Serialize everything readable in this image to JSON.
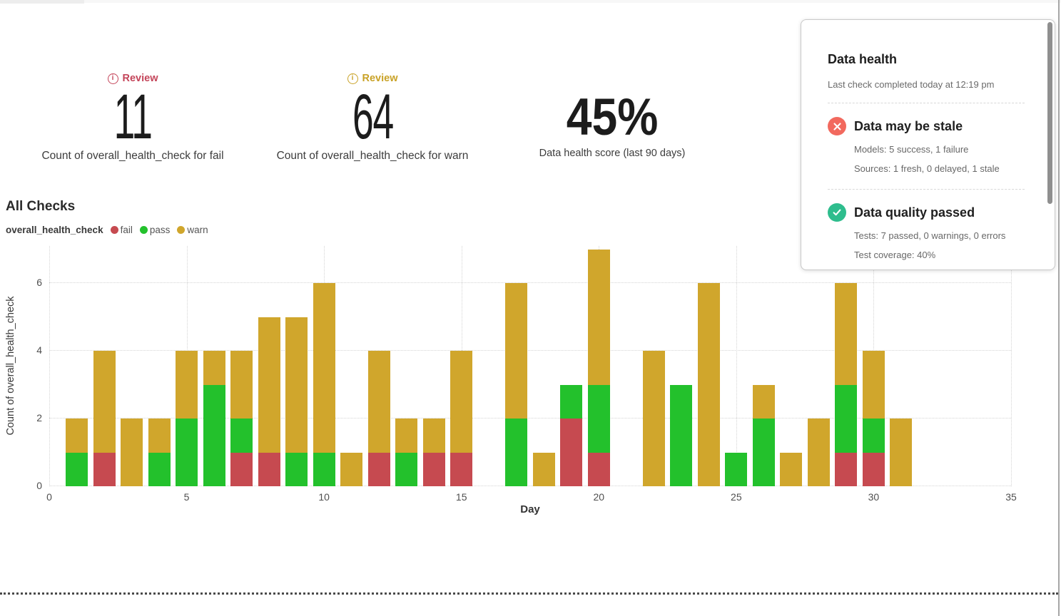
{
  "kpis": [
    {
      "review": {
        "label": "Review",
        "color": "#c4455a"
      },
      "value": "11",
      "label": "Count of overall_health_check for fail"
    },
    {
      "review": {
        "label": "Review",
        "color": "#c9a227"
      },
      "value": "64",
      "label": "Count of overall_health_check for warn"
    },
    {
      "value": "45%",
      "label": "Data health score (last 90 days)"
    }
  ],
  "chart_data": {
    "type": "bar",
    "stacked": true,
    "title": "All Checks",
    "legend_title": "overall_health_check",
    "xlabel": "Day",
    "ylabel": "Count of overall_health_check",
    "x": [
      1,
      2,
      3,
      4,
      5,
      6,
      7,
      8,
      9,
      10,
      11,
      12,
      13,
      14,
      15,
      16,
      17,
      18,
      19,
      20,
      21,
      22,
      23,
      24,
      25,
      26,
      27,
      28,
      29,
      30,
      31
    ],
    "series": [
      {
        "name": "fail",
        "color": "#c64a50",
        "values": [
          0,
          1,
          0,
          0,
          0,
          0,
          1,
          1,
          0,
          0,
          0,
          1,
          0,
          1,
          1,
          0,
          0,
          0,
          2,
          1,
          0,
          0,
          0,
          0,
          0,
          0,
          0,
          0,
          1,
          1,
          0
        ]
      },
      {
        "name": "pass",
        "color": "#23c12c",
        "values": [
          1,
          0,
          0,
          1,
          2,
          3,
          1,
          0,
          1,
          1,
          0,
          0,
          1,
          0,
          0,
          0,
          2,
          0,
          1,
          2,
          0,
          0,
          3,
          0,
          1,
          2,
          0,
          0,
          2,
          1,
          0
        ]
      },
      {
        "name": "warn",
        "color": "#d0a62c",
        "values": [
          1,
          3,
          2,
          1,
          2,
          1,
          2,
          4,
          4,
          5,
          1,
          3,
          1,
          1,
          3,
          0,
          4,
          1,
          0,
          4,
          0,
          4,
          0,
          6,
          0,
          1,
          1,
          2,
          3,
          2,
          2
        ]
      }
    ],
    "x_ticks": [
      0,
      5,
      10,
      15,
      20,
      25,
      30,
      35
    ],
    "y_ticks": [
      0,
      2,
      4,
      6
    ],
    "xlim": [
      0,
      35
    ],
    "ylim": [
      0,
      7.1
    ],
    "grid": "dotted",
    "legend_position": "top-left"
  },
  "health_panel": {
    "title": "Data health",
    "last_check": "Last check completed today at 12:19 pm",
    "sections": [
      {
        "heading": "Data may be stale",
        "icon": "x-circle-icon",
        "icon_color": "#f2695e",
        "lines": [
          "Models: 5 success, 1 failure",
          "Sources: 1 fresh, 0 delayed, 1 stale"
        ]
      },
      {
        "heading": "Data quality passed",
        "icon": "check-circle-icon",
        "icon_color": "#2ebd8d",
        "lines": [
          "Tests: 7 passed, 0 warnings, 0 errors",
          "Test coverage: 40%"
        ]
      }
    ]
  }
}
